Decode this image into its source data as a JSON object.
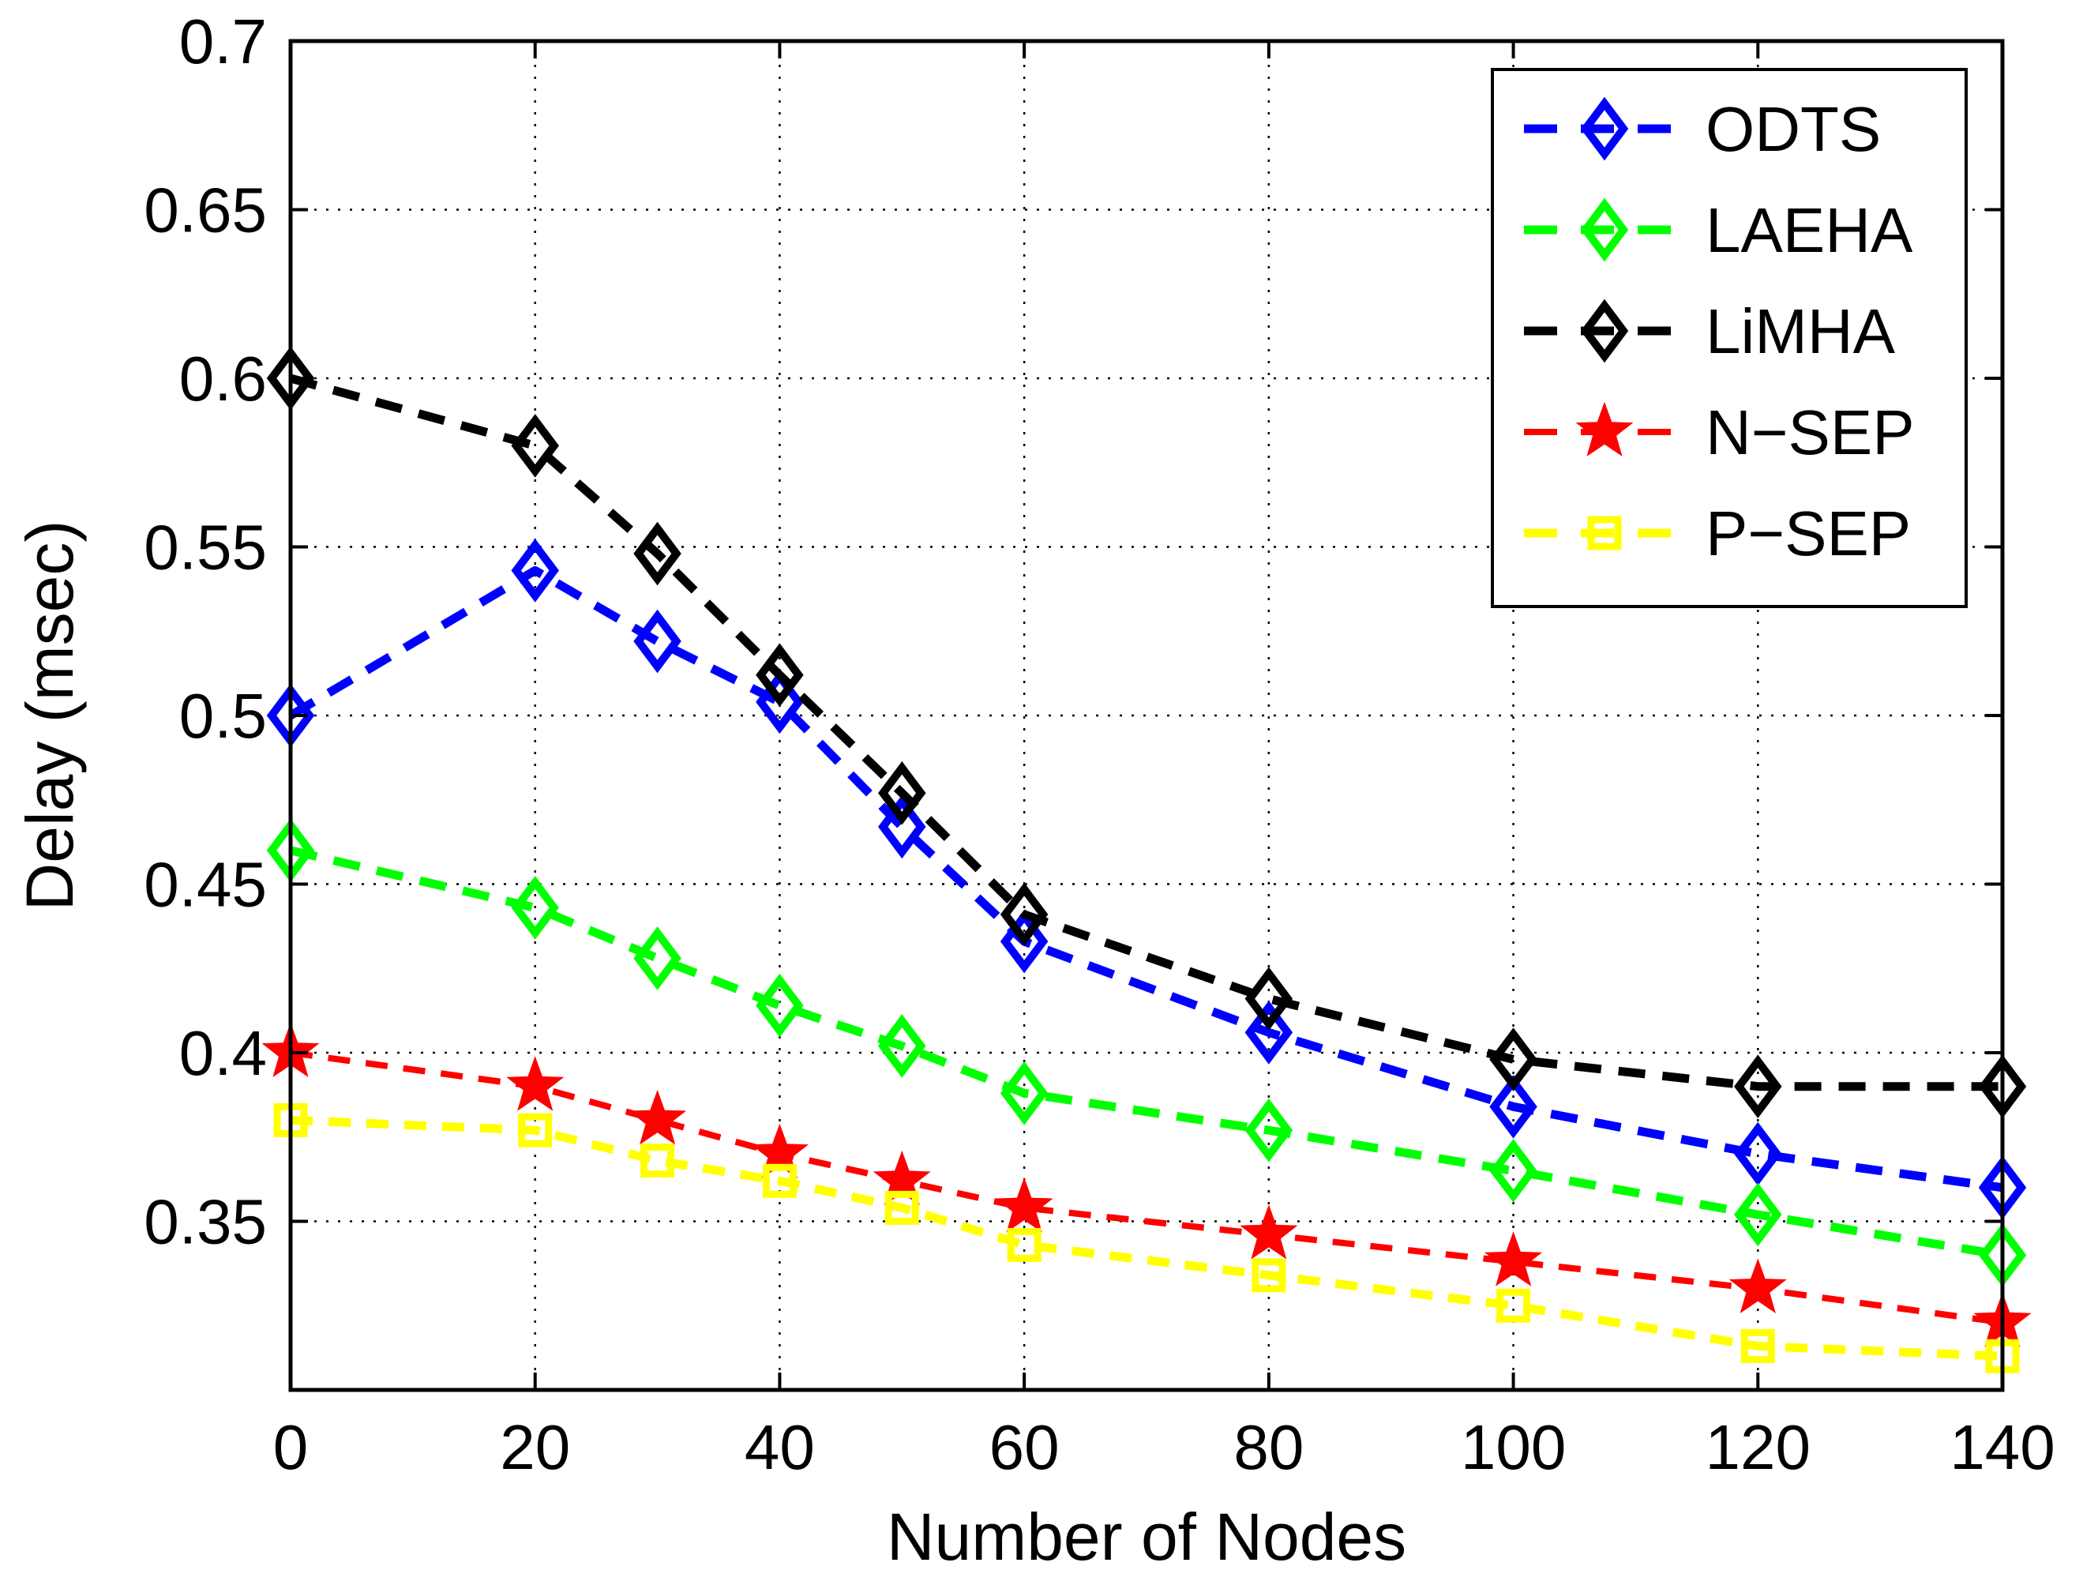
{
  "chart_data": {
    "type": "line",
    "title": "",
    "xlabel": "Number of Nodes",
    "ylabel": "Delay (msec)",
    "xlim": [
      0,
      140
    ],
    "ylim": [
      0.3,
      0.7
    ],
    "x_ticks": [
      0,
      20,
      40,
      60,
      80,
      100,
      120,
      140
    ],
    "x_tick_labels": [
      "0",
      "20",
      "40",
      "60",
      "80",
      "100",
      "120",
      "140"
    ],
    "y_ticks": [
      0.35,
      0.4,
      0.45,
      0.5,
      0.55,
      0.6,
      0.65,
      0.7
    ],
    "y_tick_labels": [
      "0.35",
      "0.4",
      "0.45",
      "0.5",
      "0.55",
      "0.6",
      "0.65",
      "0.7"
    ],
    "grid": true,
    "legend_position": "top-right",
    "x": [
      0,
      20,
      30,
      40,
      50,
      60,
      80,
      100,
      120,
      140
    ],
    "series": [
      {
        "name": "ODTS",
        "color": "#0000ff",
        "marker": "diamond",
        "line": "dashed",
        "values": [
          0.5,
          0.543,
          0.522,
          0.504,
          0.467,
          0.433,
          0.406,
          0.384,
          0.37,
          0.36
        ]
      },
      {
        "name": "LAEHA",
        "color": "#00ff00",
        "marker": "diamond",
        "line": "dashed",
        "values": [
          0.46,
          0.443,
          0.428,
          0.414,
          0.402,
          0.388,
          0.377,
          0.365,
          0.352,
          0.34
        ]
      },
      {
        "name": "LiMHA",
        "color": "#000000",
        "marker": "diamond",
        "line": "dashed",
        "values": [
          0.6,
          0.58,
          0.548,
          0.512,
          0.477,
          0.441,
          0.416,
          0.398,
          0.39,
          0.39
        ]
      },
      {
        "name": "N−SEP",
        "color": "#ff0000",
        "marker": "star",
        "line": "dashed",
        "values": [
          0.4,
          0.39,
          0.38,
          0.37,
          0.362,
          0.354,
          0.346,
          0.338,
          0.33,
          0.32
        ]
      },
      {
        "name": "P−SEP",
        "color": "#ffff00",
        "marker": "square",
        "line": "dashed",
        "values": [
          0.38,
          0.377,
          0.368,
          0.362,
          0.354,
          0.343,
          0.334,
          0.325,
          0.313,
          0.31
        ]
      }
    ]
  }
}
